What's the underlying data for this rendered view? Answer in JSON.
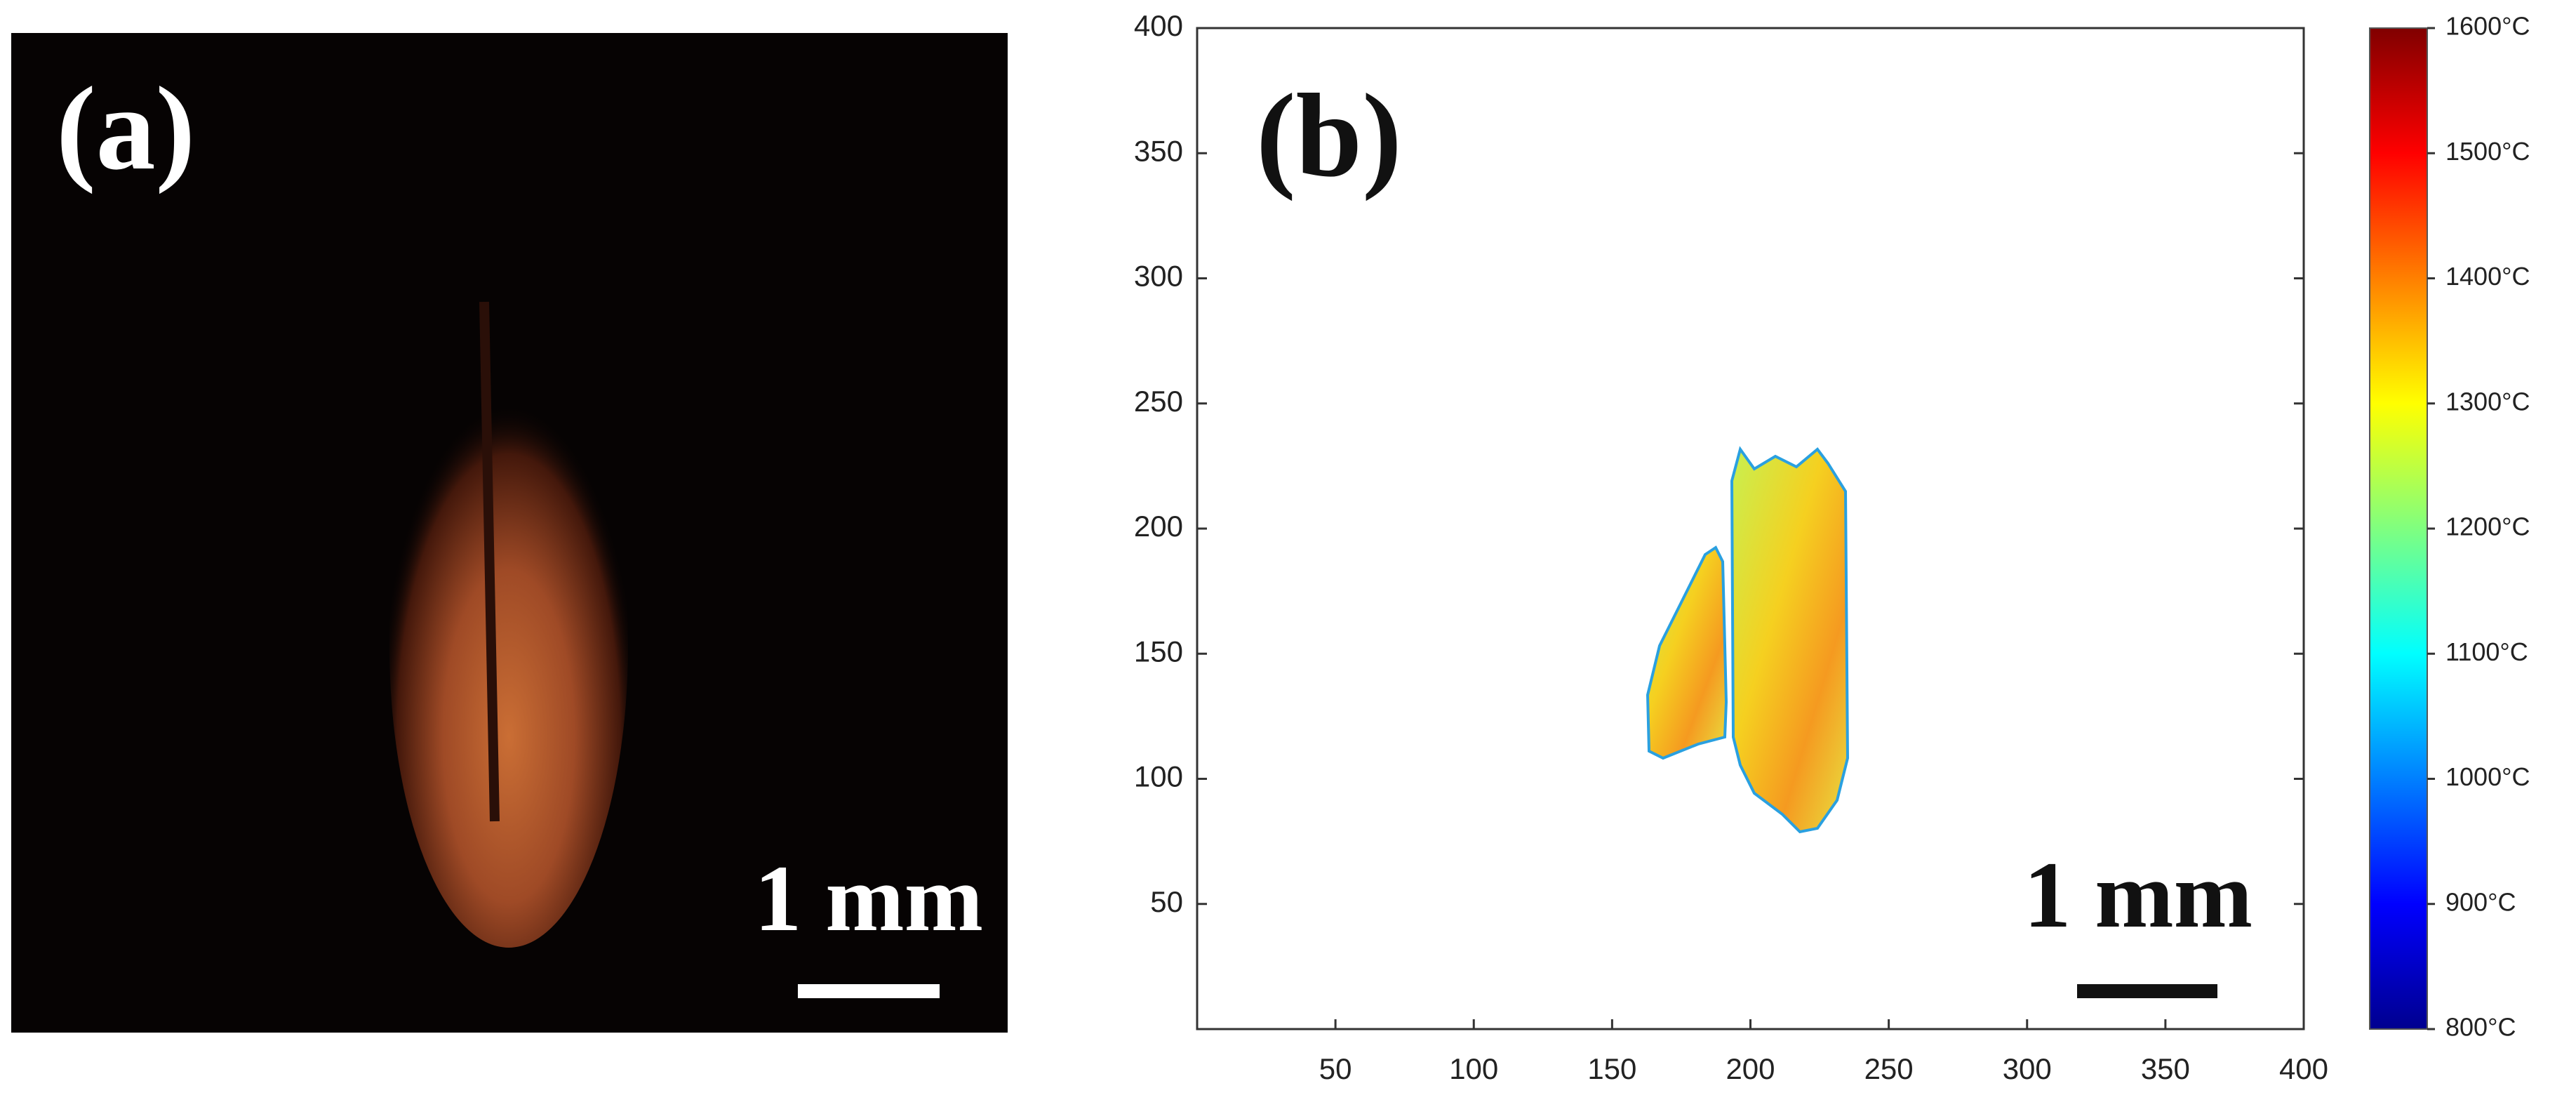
{
  "panel_a": {
    "label": "(a)",
    "scale_bar": "1 mm"
  },
  "chart_data": {
    "type": "heatmap",
    "label": "(b)",
    "scale_bar": "1 mm",
    "xlim": [
      0,
      400
    ],
    "xticks": [
      50,
      100,
      150,
      200,
      250,
      300,
      350,
      400
    ],
    "ylim": [
      0,
      400
    ],
    "yticks": [
      50,
      100,
      150,
      200,
      250,
      300,
      350,
      400
    ],
    "colorbar": {
      "lim": [
        800,
        1600
      ],
      "ticks": [
        {
          "value": 800,
          "label": "800°C"
        },
        {
          "value": 900,
          "label": "900°C"
        },
        {
          "value": 1000,
          "label": "1000°C"
        },
        {
          "value": 1100,
          "label": "1100°C"
        },
        {
          "value": 1200,
          "label": "1200°C"
        },
        {
          "value": 1300,
          "label": "1300°C"
        },
        {
          "value": 1400,
          "label": "1400°C"
        },
        {
          "value": 1500,
          "label": "1500°C"
        },
        {
          "value": 1600,
          "label": "1600°C"
        }
      ]
    }
  }
}
